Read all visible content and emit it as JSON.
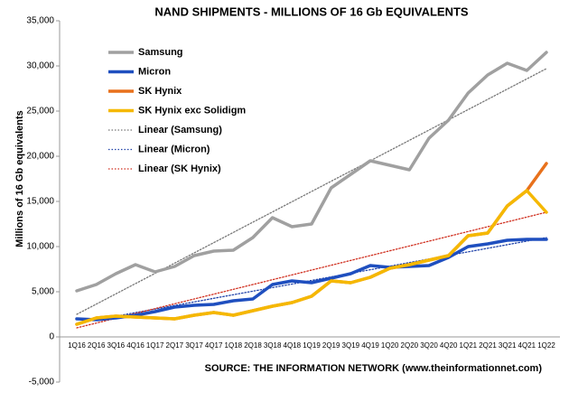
{
  "chart_data": {
    "type": "line",
    "title": "NAND SHIPMENTS - MILLIONS OF 16 Gb EQUIVALENTS",
    "y_label": "Millions of 16 Gb equivalents",
    "source": "SOURCE: THE INFORMATION NETWORK (www.theinformationnet.com)",
    "categories": [
      "1Q16",
      "2Q16",
      "3Q16",
      "4Q16",
      "1Q17",
      "2Q17",
      "3Q17",
      "4Q17",
      "1Q18",
      "2Q18",
      "3Q18",
      "4Q18",
      "1Q19",
      "2Q19",
      "3Q19",
      "4Q19",
      "1Q20",
      "2Q20",
      "3Q20",
      "4Q20",
      "1Q21",
      "2Q21",
      "3Q21",
      "4Q21",
      "1Q22"
    ],
    "ylim": [
      -5000,
      35000
    ],
    "yticks": [
      {
        "value": -5000,
        "label": "-5,000"
      },
      0,
      {
        "value": 5000,
        "label": "5,000"
      },
      {
        "value": 10000,
        "label": "10,000"
      },
      {
        "value": 15000,
        "label": "15,000"
      },
      {
        "value": 20000,
        "label": "20,000"
      },
      {
        "value": 25000,
        "label": "25,000"
      },
      {
        "value": 30000,
        "label": "30,000"
      },
      {
        "value": 35000,
        "label": "35,000"
      }
    ],
    "legend": "upper left",
    "series": [
      {
        "name": "Samsung",
        "color": "#a0a0a0",
        "style": "solid",
        "values": [
          5100,
          5800,
          7000,
          8000,
          7200,
          7800,
          9000,
          9500,
          9600,
          11000,
          13200,
          12200,
          12500,
          16500,
          18000,
          19500,
          19000,
          18500,
          22000,
          24000,
          27000,
          29000,
          30300,
          29500,
          31500
        ]
      },
      {
        "name": "Micron",
        "color": "#1f4fbf",
        "style": "solid",
        "values": [
          2000,
          1900,
          2100,
          2400,
          2800,
          3300,
          3500,
          3600,
          4000,
          4200,
          5800,
          6200,
          6000,
          6500,
          7000,
          7900,
          7700,
          7800,
          7900,
          8800,
          10000,
          10300,
          10700,
          10800,
          10800
        ]
      },
      {
        "name": "SK Hynix",
        "color": "#e8711c",
        "style": "solid",
        "values": [
          1400,
          2100,
          2300,
          2200,
          2100,
          2000,
          2400,
          2700,
          2400,
          2900,
          3400,
          3800,
          4500,
          6200,
          6000,
          6600,
          7600,
          8000,
          8500,
          9000,
          11200,
          11500,
          14500,
          16200,
          19200
        ]
      },
      {
        "name": "SK Hynix exc Solidigm",
        "color": "#f5b800",
        "style": "solid",
        "values": [
          1400,
          2100,
          2300,
          2200,
          2100,
          2000,
          2400,
          2700,
          2400,
          2900,
          3400,
          3800,
          4500,
          6200,
          6000,
          6600,
          7600,
          8000,
          8500,
          9000,
          11200,
          11500,
          14500,
          16200,
          13800
        ]
      },
      {
        "name": "Linear (Samsung)",
        "color": "#777777",
        "style": "dotted",
        "values": [
          2500,
          3633,
          4767,
          5900,
          7033,
          8167,
          9300,
          10433,
          11567,
          12700,
          13833,
          14967,
          16100,
          17233,
          18367,
          19500,
          20633,
          21767,
          22900,
          24033,
          25167,
          26300,
          27433,
          28567,
          29700
        ]
      },
      {
        "name": "Linear (Micron)",
        "color": "#2244aa",
        "style": "dotted",
        "values": [
          1500,
          1896,
          2292,
          2688,
          3083,
          3479,
          3875,
          4271,
          4667,
          5063,
          5458,
          5854,
          6250,
          6646,
          7042,
          7438,
          7833,
          8229,
          8625,
          9021,
          9417,
          9813,
          10208,
          10604,
          11000
        ]
      },
      {
        "name": "Linear (SK Hynix)",
        "color": "#d03020",
        "style": "dotted",
        "values": [
          1000,
          1533,
          2067,
          2600,
          3133,
          3667,
          4200,
          4733,
          5267,
          5800,
          6333,
          6867,
          7400,
          7933,
          8467,
          9000,
          9533,
          10067,
          10600,
          11133,
          11667,
          12200,
          12733,
          13267,
          13800
        ]
      }
    ]
  }
}
